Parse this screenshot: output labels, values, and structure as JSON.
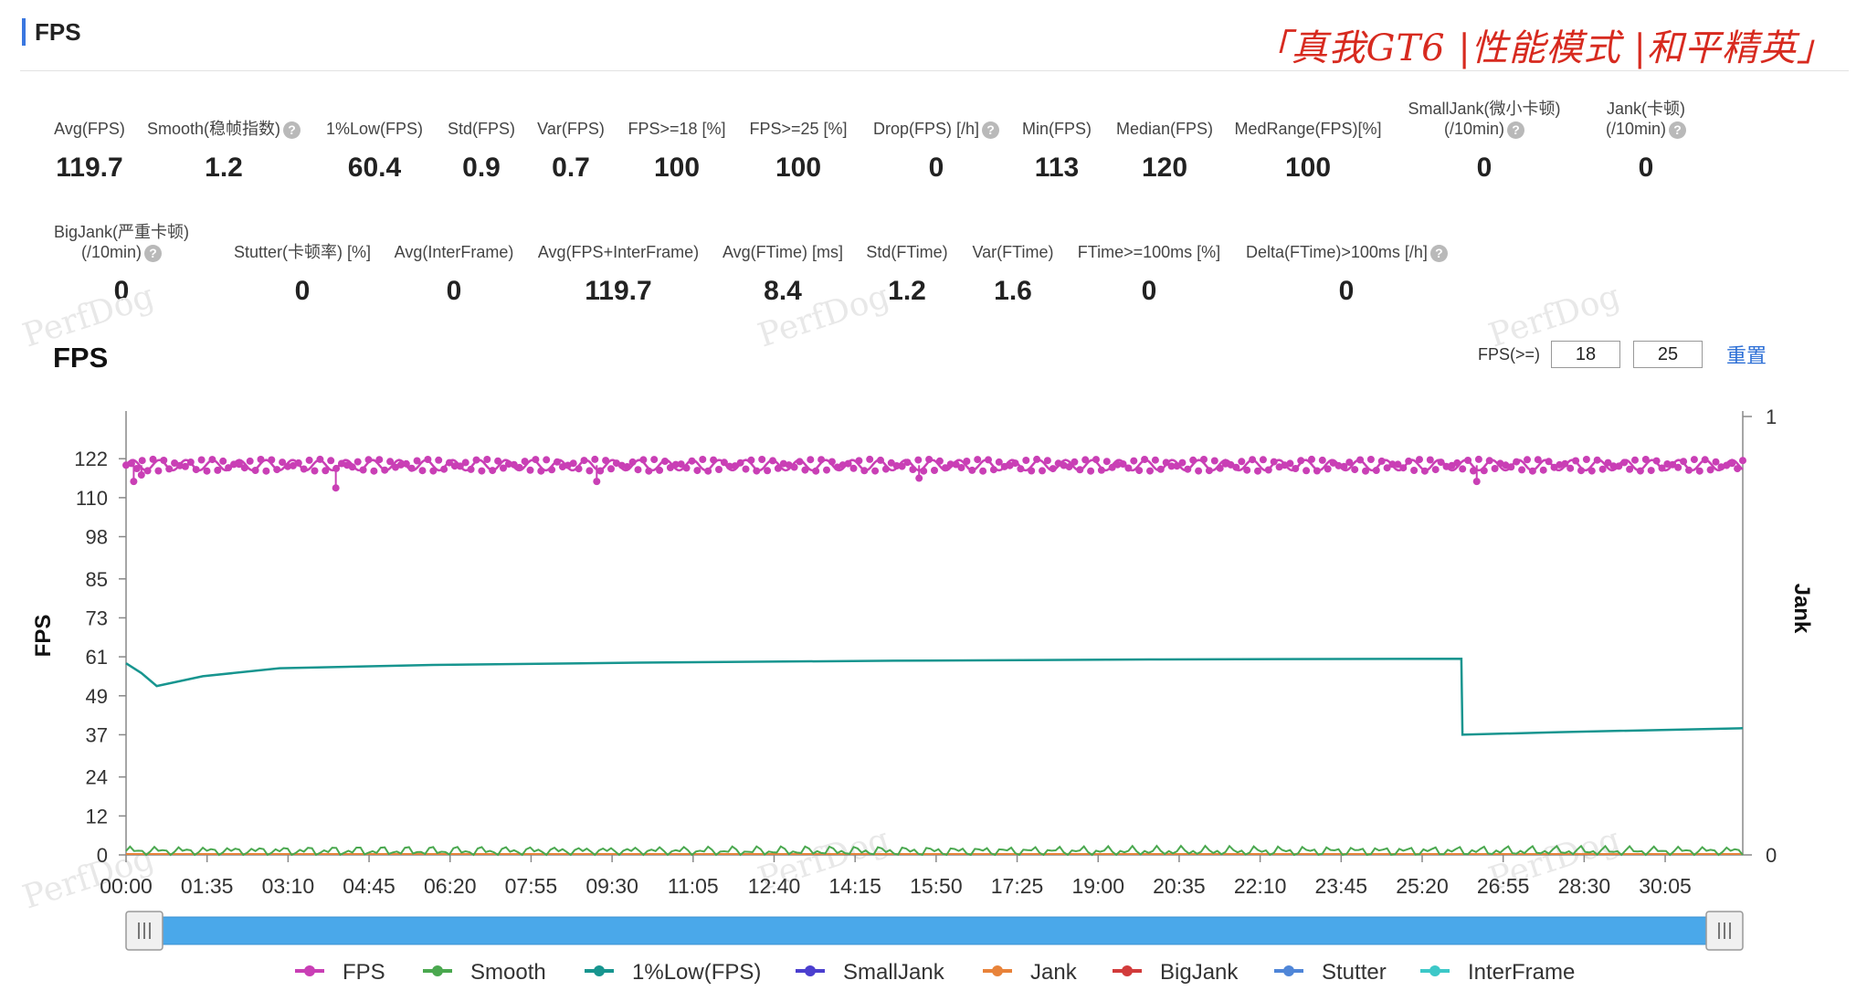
{
  "header": {
    "section_title": "FPS",
    "brand_tag": "「真我GT6 |性能模式 |和平精英」"
  },
  "stats_row1": [
    {
      "label": "Avg(FPS)",
      "value": "119.7",
      "help": false
    },
    {
      "label": "Smooth(稳帧指数)",
      "value": "1.2",
      "help": true
    },
    {
      "label": "1%Low(FPS)",
      "value": "60.4",
      "help": false
    },
    {
      "label": "Std(FPS)",
      "value": "0.9",
      "help": false
    },
    {
      "label": "Var(FPS)",
      "value": "0.7",
      "help": false
    },
    {
      "label": "FPS>=18 [%]",
      "value": "100",
      "help": false
    },
    {
      "label": "FPS>=25 [%]",
      "value": "100",
      "help": false
    },
    {
      "label": "Drop(FPS) [/h]",
      "value": "0",
      "help": true
    },
    {
      "label": "Min(FPS)",
      "value": "113",
      "help": false
    },
    {
      "label": "Median(FPS)",
      "value": "120",
      "help": false
    },
    {
      "label": "MedRange(FPS)[%]",
      "value": "100",
      "help": false
    },
    {
      "label": "SmallJank(微小卡顿)",
      "label2": "(/10min)",
      "value": "0",
      "help": true
    },
    {
      "label": "Jank(卡顿)",
      "label2": "(/10min)",
      "value": "0",
      "help": true
    }
  ],
  "stats_row2": [
    {
      "label": "BigJank(严重卡顿)",
      "label2": "(/10min)",
      "value": "0",
      "help": true
    },
    {
      "label": "Stutter(卡顿率) [%]",
      "value": "0",
      "help": false
    },
    {
      "label": "Avg(InterFrame)",
      "value": "0",
      "help": false
    },
    {
      "label": "Avg(FPS+InterFrame)",
      "value": "119.7",
      "help": false
    },
    {
      "label": "Avg(FTime) [ms]",
      "value": "8.4",
      "help": false
    },
    {
      "label": "Std(FTime)",
      "value": "1.2",
      "help": false
    },
    {
      "label": "Var(FTime)",
      "value": "1.6",
      "help": false
    },
    {
      "label": "FTime>=100ms [%]",
      "value": "0",
      "help": false
    },
    {
      "label": "Delta(FTime)>100ms [/h]",
      "value": "0",
      "help": true
    }
  ],
  "watermark_text": "PerfDog",
  "chart_panel": {
    "title": "FPS",
    "threshold_label": "FPS(>=)",
    "threshold_1": "18",
    "threshold_2": "25",
    "reset_label": "重置"
  },
  "chart_data": {
    "type": "line",
    "ylabel": "FPS",
    "y2label": "Jank",
    "y_ticks": [
      0,
      12,
      24,
      37,
      49,
      61,
      73,
      85,
      98,
      110,
      122
    ],
    "ylim": [
      0,
      135
    ],
    "y2_ticks": [
      0,
      1
    ],
    "x_ticks": [
      "00:00",
      "01:35",
      "03:10",
      "04:45",
      "06:20",
      "07:55",
      "09:30",
      "11:05",
      "12:40",
      "14:15",
      "15:50",
      "17:25",
      "19:00",
      "20:35",
      "22:10",
      "23:45",
      "25:20",
      "26:55",
      "28:30",
      "30:05"
    ],
    "x_range_minutes": [
      0,
      31.6
    ],
    "legend_position": "bottom",
    "series": [
      {
        "name": "FPS",
        "color": "#c93fb5",
        "marker": "dots",
        "approx_value": 120,
        "dips": [
          [
            0.15,
            115
          ],
          [
            0.3,
            117
          ],
          [
            4.1,
            113
          ],
          [
            9.2,
            115
          ],
          [
            15.5,
            116
          ],
          [
            26.4,
            115
          ]
        ]
      },
      {
        "name": "Smooth",
        "color": "#4aa84f",
        "approx_value": 1.2
      },
      {
        "name": "1%Low(FPS)",
        "color": "#17958f",
        "points": [
          [
            0,
            59
          ],
          [
            0.3,
            56
          ],
          [
            0.6,
            52
          ],
          [
            1.5,
            55
          ],
          [
            3,
            57.5
          ],
          [
            6,
            58.5
          ],
          [
            10,
            59.2
          ],
          [
            15,
            59.8
          ],
          [
            20,
            60.2
          ],
          [
            26.1,
            60.4
          ],
          [
            26.12,
            37
          ],
          [
            28,
            37.8
          ],
          [
            31.6,
            39
          ]
        ]
      },
      {
        "name": "SmallJank",
        "color": "#4b3fcf",
        "approx_value": 0
      },
      {
        "name": "Jank",
        "color": "#e8833a",
        "approx_value": 0
      },
      {
        "name": "BigJank",
        "color": "#d23b3b",
        "approx_value": 0
      },
      {
        "name": "Stutter",
        "color": "#4f86d8",
        "approx_value": 0
      },
      {
        "name": "InterFrame",
        "color": "#3cc8c8",
        "approx_value": 0
      }
    ]
  }
}
